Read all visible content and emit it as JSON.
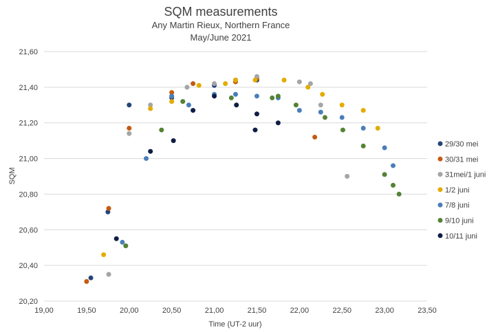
{
  "chart_data": {
    "type": "scatter",
    "title": "SQM measurements",
    "subtitle_lines": [
      "Any Martin Rieux, Northern France",
      "May/June 2021"
    ],
    "xlabel": "Time (UT-2 uur)",
    "ylabel": "SQM",
    "xlim": [
      19.0,
      23.5
    ],
    "ylim": [
      20.2,
      21.6
    ],
    "x_ticks": [
      "19,00",
      "19,50",
      "20,00",
      "20,50",
      "21,00",
      "21,50",
      "22,00",
      "22,50",
      "23,00",
      "23,50"
    ],
    "y_ticks": [
      "20,20",
      "20,40",
      "20,60",
      "20,80",
      "21,00",
      "21,20",
      "21,40",
      "21,60"
    ],
    "grid": "horizontal",
    "legend_position": "right",
    "series": [
      {
        "name": "29/30 mei",
        "color": "#264478",
        "points": [
          [
            19.55,
            20.33
          ],
          [
            19.75,
            20.7
          ],
          [
            20.0,
            21.3
          ],
          [
            20.5,
            21.34
          ],
          [
            21.0,
            21.41
          ],
          [
            21.25,
            21.44
          ],
          [
            21.5,
            21.44
          ]
        ]
      },
      {
        "name": "30/31 mei",
        "color": "#C55A11",
        "points": [
          [
            19.5,
            20.31
          ],
          [
            19.76,
            20.72
          ],
          [
            20.0,
            21.17
          ],
          [
            20.5,
            21.37
          ],
          [
            20.75,
            21.42
          ],
          [
            21.25,
            21.43
          ],
          [
            21.5,
            21.45
          ],
          [
            22.18,
            21.12
          ]
        ]
      },
      {
        "name": "31mei/1 juni",
        "color": "#A5A5A5",
        "points": [
          [
            19.76,
            20.35
          ],
          [
            20.0,
            21.14
          ],
          [
            20.25,
            21.3
          ],
          [
            20.5,
            21.35
          ],
          [
            20.68,
            21.4
          ],
          [
            21.0,
            21.42
          ],
          [
            21.25,
            21.44
          ],
          [
            21.5,
            21.46
          ],
          [
            22.0,
            21.43
          ],
          [
            22.13,
            21.42
          ],
          [
            22.25,
            21.3
          ],
          [
            22.56,
            20.9
          ]
        ]
      },
      {
        "name": "1/2 juni",
        "color": "#E2AC00",
        "points": [
          [
            19.7,
            20.46
          ],
          [
            20.25,
            21.28
          ],
          [
            20.5,
            21.32
          ],
          [
            20.82,
            21.41
          ],
          [
            21.13,
            21.42
          ],
          [
            21.25,
            21.44
          ],
          [
            21.48,
            21.44
          ],
          [
            21.82,
            21.44
          ],
          [
            22.1,
            21.4
          ],
          [
            22.27,
            21.36
          ],
          [
            22.5,
            21.3
          ],
          [
            22.75,
            21.27
          ],
          [
            22.92,
            21.17
          ]
        ]
      },
      {
        "name": "7/8 juni",
        "color": "#4A7EBB",
        "points": [
          [
            19.92,
            20.53
          ],
          [
            20.2,
            21.0
          ],
          [
            20.5,
            21.35
          ],
          [
            20.7,
            21.3
          ],
          [
            21.0,
            21.36
          ],
          [
            21.25,
            21.36
          ],
          [
            21.5,
            21.35
          ],
          [
            21.75,
            21.34
          ],
          [
            22.0,
            21.27
          ],
          [
            22.25,
            21.26
          ],
          [
            22.5,
            21.23
          ],
          [
            22.75,
            21.17
          ],
          [
            23.0,
            21.06
          ],
          [
            23.1,
            20.96
          ]
        ]
      },
      {
        "name": "9/10 juni",
        "color": "#548235",
        "points": [
          [
            19.96,
            20.51
          ],
          [
            20.38,
            21.16
          ],
          [
            20.63,
            21.32
          ],
          [
            21.2,
            21.34
          ],
          [
            21.68,
            21.34
          ],
          [
            21.75,
            21.35
          ],
          [
            21.96,
            21.3
          ],
          [
            22.3,
            21.23
          ],
          [
            22.51,
            21.16
          ],
          [
            22.75,
            21.07
          ],
          [
            23.0,
            20.91
          ],
          [
            23.1,
            20.85
          ],
          [
            23.17,
            20.8
          ]
        ]
      },
      {
        "name": "10/11 juni",
        "color": "#0F1E45",
        "points": [
          [
            19.85,
            20.55
          ],
          [
            20.25,
            21.04
          ],
          [
            20.52,
            21.1
          ],
          [
            20.75,
            21.27
          ],
          [
            21.0,
            21.35
          ],
          [
            21.26,
            21.3
          ],
          [
            21.48,
            21.16
          ],
          [
            21.5,
            21.25
          ],
          [
            21.75,
            21.2
          ]
        ]
      }
    ]
  }
}
